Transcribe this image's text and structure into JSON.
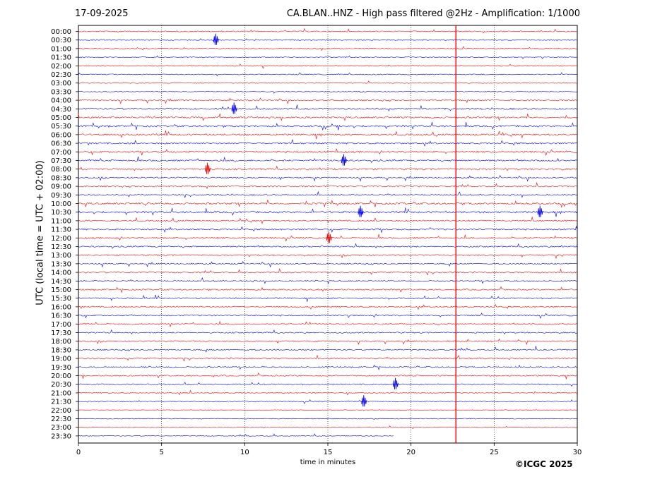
{
  "header": {
    "date": "17-09-2025",
    "station_title": "CA.BLAN..HNZ - High pass filtered @2Hz - Amplification: 1/1000"
  },
  "footer": {
    "copyright": "©ICGC 2025"
  },
  "colors": {
    "trace_a": "#ff0000",
    "trace_b": "#0000ff",
    "grid": "#000000",
    "event": "#ff0000"
  },
  "chart_data": {
    "type": "line",
    "subtype": "helicorder",
    "xlabel": "time in minutes",
    "ylabel": "UTC (local time = UTC + 02:00)",
    "xlim": [
      0,
      30
    ],
    "x_ticks": [
      0,
      5,
      10,
      15,
      20,
      25,
      30
    ],
    "grid": "vertical dotted at 5-minute ticks",
    "row_labels": [
      "00:00",
      "00:30",
      "01:00",
      "01:30",
      "02:00",
      "02:30",
      "03:00",
      "03:30",
      "04:00",
      "04:30",
      "05:00",
      "05:30",
      "06:00",
      "06:30",
      "07:00",
      "07:30",
      "08:00",
      "08:30",
      "09:00",
      "09:30",
      "10:00",
      "10:30",
      "11:00",
      "11:30",
      "12:00",
      "12:30",
      "13:00",
      "13:30",
      "14:00",
      "14:30",
      "15:00",
      "15:30",
      "16:00",
      "16:30",
      "17:00",
      "17:30",
      "18:00",
      "18:30",
      "19:00",
      "19:30",
      "20:00",
      "20:30",
      "21:00",
      "21:30",
      "22:00",
      "22:30",
      "23:00",
      "23:30"
    ],
    "row_colors_cycle": [
      "red",
      "blue"
    ],
    "row_activity": [
      0.4,
      0.35,
      0.15,
      0.15,
      0.3,
      0.3,
      0.2,
      0.2,
      0.6,
      0.7,
      0.8,
      1.0,
      0.9,
      0.8,
      0.8,
      0.75,
      0.7,
      0.6,
      0.55,
      0.55,
      0.9,
      1.0,
      0.75,
      0.7,
      0.7,
      0.6,
      0.6,
      0.55,
      0.55,
      0.6,
      0.6,
      0.6,
      0.65,
      0.55,
      0.5,
      0.55,
      0.55,
      0.55,
      0.5,
      0.5,
      0.5,
      0.45,
      0.35,
      0.25,
      0.15,
      0.15,
      0.1,
      0.1
    ],
    "row_end_minute": {
      "23:30": 19.0
    },
    "vertical_event_minute": 22.7,
    "notable_spikes": [
      {
        "row": "00:30",
        "minute": 8.3
      },
      {
        "row": "04:30",
        "minute": 9.4
      },
      {
        "row": "07:30",
        "minute": 16.0
      },
      {
        "row": "08:00",
        "minute": 7.8
      },
      {
        "row": "10:30",
        "minute": 17.0
      },
      {
        "row": "10:30",
        "minute": 27.8
      },
      {
        "row": "12:00",
        "minute": 15.1
      },
      {
        "row": "20:30",
        "minute": 19.1
      },
      {
        "row": "21:30",
        "minute": 17.2
      }
    ]
  }
}
